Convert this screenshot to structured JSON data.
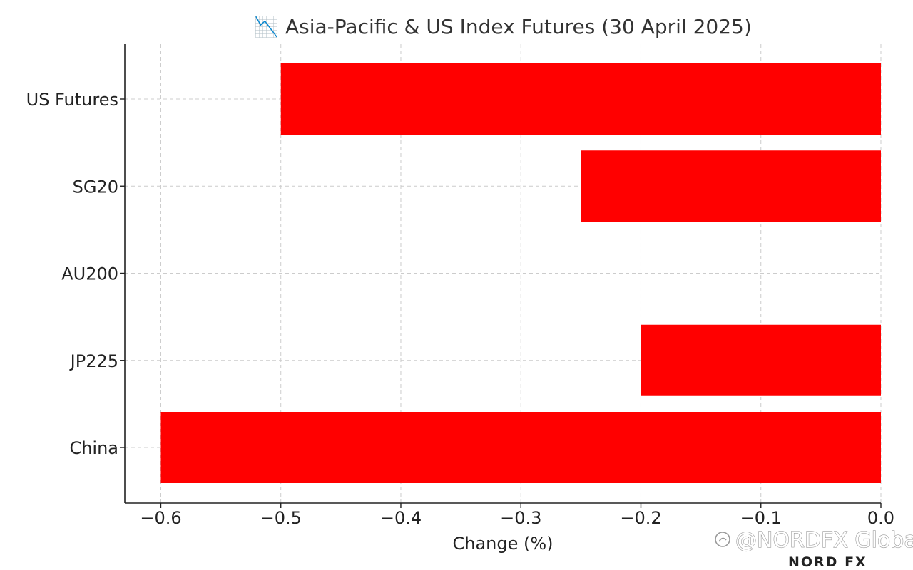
{
  "chart_data": {
    "type": "bar",
    "orientation": "horizontal",
    "title": "📉 Asia-Pacific & US Index Futures (30 April 2025)",
    "xlabel": "Change (%)",
    "ylabel": "",
    "categories": [
      "US Futures",
      "SG20",
      "AU200",
      "JP225",
      "China"
    ],
    "values": [
      -0.5,
      -0.25,
      0.0,
      -0.2,
      -0.6
    ],
    "xlim": [
      -0.63,
      0.0
    ],
    "xticks": [
      -0.6,
      -0.5,
      -0.4,
      -0.3,
      -0.2,
      -0.1,
      0.0
    ],
    "xtick_labels": [
      "−0.6",
      "−0.5",
      "−0.4",
      "−0.3",
      "−0.2",
      "−0.1",
      "0.0"
    ],
    "grid": true,
    "bar_color": "#ff0000",
    "grid_color": "#cccccc"
  },
  "watermark": {
    "text": "@NORDFX Global",
    "brand": "NORD FX"
  }
}
